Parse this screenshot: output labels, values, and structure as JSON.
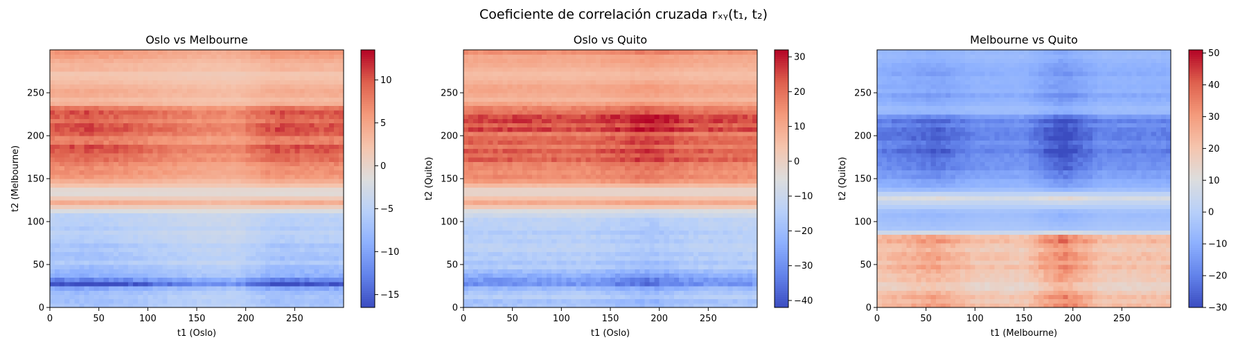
{
  "suptitle": "Coeficiente de correlación cruzada rₓᵧ(t₁, t₂)",
  "chart_data": [
    {
      "type": "heatmap",
      "title": "Oslo vs Melbourne",
      "xlabel": "t1 (Oslo)",
      "ylabel": "t2 (Melbourne)",
      "xlim": [
        0,
        300
      ],
      "ylim": [
        0,
        300
      ],
      "xticks": [
        0,
        50,
        100,
        150,
        200,
        250
      ],
      "yticks": [
        0,
        50,
        100,
        150,
        200,
        250
      ],
      "colormap": "coolwarm",
      "clim": [
        -16.5,
        13.5
      ],
      "colorbar_ticks": [
        -15,
        -10,
        -5,
        0,
        5,
        10
      ],
      "row_profile": [
        {
          "t2": 0,
          "value": -8
        },
        {
          "t2": 10,
          "value": -6
        },
        {
          "t2": 20,
          "value": -8
        },
        {
          "t2": 28,
          "value": -15
        },
        {
          "t2": 35,
          "value": -9
        },
        {
          "t2": 50,
          "value": -7
        },
        {
          "t2": 70,
          "value": -6
        },
        {
          "t2": 90,
          "value": -5
        },
        {
          "t2": 110,
          "value": -4
        },
        {
          "t2": 122,
          "value": 4
        },
        {
          "t2": 135,
          "value": -2
        },
        {
          "t2": 150,
          "value": 6
        },
        {
          "t2": 165,
          "value": 7
        },
        {
          "t2": 178,
          "value": 10
        },
        {
          "t2": 195,
          "value": 8
        },
        {
          "t2": 215,
          "value": 10
        },
        {
          "t2": 230,
          "value": 9
        },
        {
          "t2": 240,
          "value": 3
        },
        {
          "t2": 255,
          "value": 4
        },
        {
          "t2": 270,
          "value": 2
        },
        {
          "t2": 285,
          "value": 4
        },
        {
          "t2": 299,
          "value": 6
        }
      ],
      "column_modulation": [
        {
          "t1": 0,
          "factor": 1.0
        },
        {
          "t1": 40,
          "factor": 1.05
        },
        {
          "t1": 100,
          "factor": 0.9
        },
        {
          "t1": 150,
          "factor": 0.75
        },
        {
          "t1": 190,
          "factor": 0.7
        },
        {
          "t1": 230,
          "factor": 1.05
        },
        {
          "t1": 260,
          "factor": 1.0
        },
        {
          "t1": 299,
          "factor": 1.0
        }
      ]
    },
    {
      "type": "heatmap",
      "title": "Oslo vs Quito",
      "xlabel": "t1 (Oslo)",
      "ylabel": "t2 (Quito)",
      "xlim": [
        0,
        300
      ],
      "ylim": [
        0,
        300
      ],
      "xticks": [
        0,
        50,
        100,
        150,
        200,
        250
      ],
      "yticks": [
        0,
        50,
        100,
        150,
        200,
        250
      ],
      "colormap": "coolwarm",
      "clim": [
        -42,
        32
      ],
      "colorbar_ticks": [
        -40,
        -30,
        -20,
        -10,
        0,
        10,
        20,
        30
      ],
      "row_profile": [
        {
          "t2": 0,
          "value": -20
        },
        {
          "t2": 10,
          "value": -15
        },
        {
          "t2": 20,
          "value": -20
        },
        {
          "t2": 28,
          "value": -36
        },
        {
          "t2": 35,
          "value": -22
        },
        {
          "t2": 50,
          "value": -17
        },
        {
          "t2": 70,
          "value": -15
        },
        {
          "t2": 90,
          "value": -13
        },
        {
          "t2": 110,
          "value": -10
        },
        {
          "t2": 122,
          "value": 10
        },
        {
          "t2": 135,
          "value": -4
        },
        {
          "t2": 150,
          "value": 15
        },
        {
          "t2": 165,
          "value": 17
        },
        {
          "t2": 178,
          "value": 24
        },
        {
          "t2": 195,
          "value": 20
        },
        {
          "t2": 215,
          "value": 24
        },
        {
          "t2": 230,
          "value": 22
        },
        {
          "t2": 240,
          "value": 7
        },
        {
          "t2": 255,
          "value": 10
        },
        {
          "t2": 270,
          "value": 5
        },
        {
          "t2": 285,
          "value": 10
        },
        {
          "t2": 299,
          "value": 14
        }
      ],
      "column_modulation": [
        {
          "t1": 0,
          "factor": 1.0
        },
        {
          "t1": 60,
          "factor": 1.0
        },
        {
          "t1": 120,
          "factor": 0.95
        },
        {
          "t1": 191,
          "factor": 1.2
        },
        {
          "t1": 230,
          "factor": 1.0
        },
        {
          "t1": 299,
          "factor": 0.95
        }
      ]
    },
    {
      "type": "heatmap",
      "title": "Melbourne vs Quito",
      "xlabel": "t1 (Melbourne)",
      "ylabel": "t2 (Quito)",
      "xlim": [
        0,
        300
      ],
      "ylim": [
        0,
        300
      ],
      "xticks": [
        0,
        50,
        100,
        150,
        200,
        250
      ],
      "yticks": [
        0,
        50,
        100,
        150,
        200,
        250
      ],
      "colormap": "coolwarm",
      "clim": [
        -30,
        51
      ],
      "colorbar_ticks": [
        -30,
        -20,
        -10,
        0,
        10,
        20,
        30,
        40,
        50
      ],
      "row_profile": [
        {
          "t2": 0,
          "value": 22
        },
        {
          "t2": 15,
          "value": 25
        },
        {
          "t2": 25,
          "value": 12
        },
        {
          "t2": 40,
          "value": 24
        },
        {
          "t2": 55,
          "value": 22
        },
        {
          "t2": 70,
          "value": 20
        },
        {
          "t2": 82,
          "value": 22
        },
        {
          "t2": 90,
          "value": -2
        },
        {
          "t2": 110,
          "value": -6
        },
        {
          "t2": 128,
          "value": 8
        },
        {
          "t2": 140,
          "value": -8
        },
        {
          "t2": 165,
          "value": -16
        },
        {
          "t2": 185,
          "value": -20
        },
        {
          "t2": 205,
          "value": -22
        },
        {
          "t2": 220,
          "value": -16
        },
        {
          "t2": 230,
          "value": -4
        },
        {
          "t2": 245,
          "value": -12
        },
        {
          "t2": 260,
          "value": -8
        },
        {
          "t2": 275,
          "value": -12
        },
        {
          "t2": 299,
          "value": -6
        }
      ],
      "column_modulation": [
        {
          "t1": 0,
          "factor": 1.0
        },
        {
          "t1": 62,
          "factor": 1.3
        },
        {
          "t1": 100,
          "factor": 0.95
        },
        {
          "t1": 150,
          "factor": 0.9
        },
        {
          "t1": 190,
          "factor": 1.6
        },
        {
          "t1": 230,
          "factor": 0.95
        },
        {
          "t1": 299,
          "factor": 1.0
        }
      ]
    }
  ]
}
